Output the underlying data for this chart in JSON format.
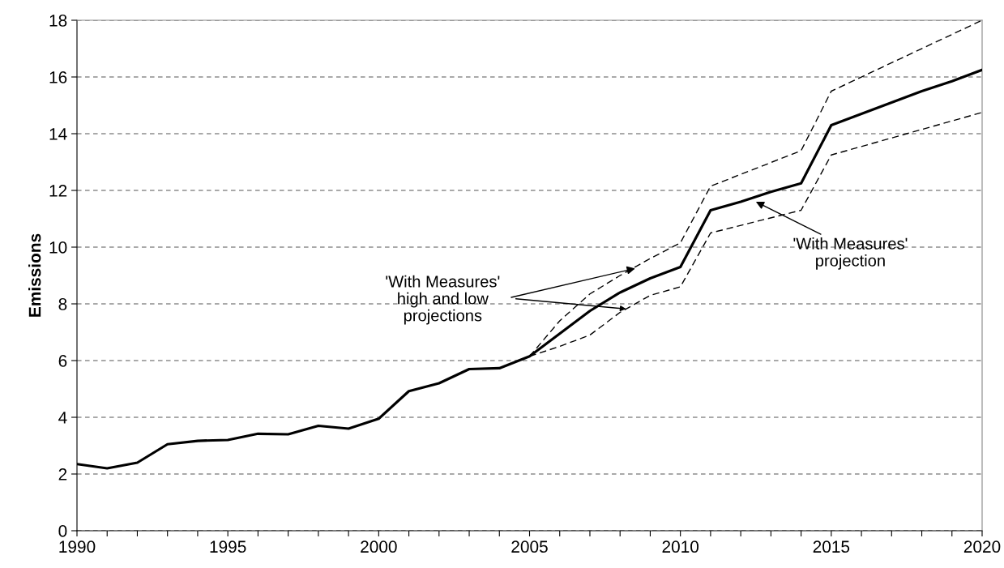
{
  "chart_data": {
    "type": "line",
    "ylabel": "Emissions",
    "xlim": [
      1990,
      2020
    ],
    "ylim": [
      0,
      18
    ],
    "xticks": [
      1990,
      {
        "value": 1991,
        "label": null
      },
      {
        "value": 1992,
        "label": null
      },
      {
        "value": 1993,
        "label": null
      },
      {
        "value": 1994,
        "label": null
      },
      1995,
      {
        "value": 1996,
        "label": null
      },
      {
        "value": 1997,
        "label": null
      },
      {
        "value": 1998,
        "label": null
      },
      {
        "value": 1999,
        "label": null
      },
      2000,
      {
        "value": 2001,
        "label": null
      },
      {
        "value": 2002,
        "label": null
      },
      {
        "value": 2003,
        "label": null
      },
      {
        "value": 2004,
        "label": null
      },
      2005,
      {
        "value": 2006,
        "label": null
      },
      {
        "value": 2007,
        "label": null
      },
      {
        "value": 2008,
        "label": null
      },
      {
        "value": 2009,
        "label": null
      },
      2010,
      {
        "value": 2011,
        "label": null
      },
      {
        "value": 2012,
        "label": null
      },
      {
        "value": 2013,
        "label": null
      },
      {
        "value": 2014,
        "label": null
      },
      2015,
      {
        "value": 2016,
        "label": null
      },
      {
        "value": 2017,
        "label": null
      },
      {
        "value": 2018,
        "label": null
      },
      {
        "value": 2019,
        "label": null
      },
      2020
    ],
    "yticks": [
      0,
      2,
      4,
      6,
      8,
      10,
      12,
      14,
      16,
      18
    ],
    "grid": "y",
    "marker": "none",
    "series": [
      {
        "color": "#000000",
        "line_style": "solid",
        "x": [
          1990,
          1991,
          1992,
          1993,
          1994,
          1995,
          1996,
          1997,
          1998,
          1999,
          2000,
          2001,
          2002,
          2003,
          2004,
          2005,
          2006,
          2007,
          2008,
          2009,
          2010,
          2011,
          2012,
          2013,
          2014,
          2015,
          2016,
          2017,
          2018,
          2019,
          2020
        ],
        "values": [
          2.35,
          2.2,
          2.4,
          3.05,
          3.17,
          3.2,
          3.42,
          3.4,
          3.7,
          3.6,
          3.95,
          4.92,
          5.2,
          5.7,
          5.73,
          6.15,
          6.95,
          7.75,
          8.4,
          8.9,
          9.3,
          11.3,
          11.6,
          11.95,
          12.25,
          14.3,
          14.7,
          15.1,
          15.5,
          15.85,
          16.25
        ]
      },
      {
        "color": "#000000",
        "line_style": "dashed",
        "x": [
          2005,
          2006,
          2007,
          2008,
          2009,
          2010,
          2011,
          2014,
          2015,
          2020
        ],
        "values": [
          6.15,
          7.4,
          8.35,
          9.0,
          9.6,
          10.15,
          12.15,
          13.4,
          15.5,
          18.0
        ]
      },
      {
        "color": "#000000",
        "line_style": "dashed",
        "x": [
          2005,
          2006,
          2007,
          2008,
          2009,
          2010,
          2011,
          2014,
          2015,
          2020
        ],
        "values": [
          6.15,
          6.5,
          6.9,
          7.7,
          8.3,
          8.6,
          10.5,
          11.3,
          13.25,
          14.75
        ]
      }
    ],
    "annotations": [
      {
        "text": "'With Measures'\nhigh and low\nprojections",
        "x": 2008.5,
        "y": 9.25
      },
      {
        "text": "'With Measures'\nprojection",
        "x": 2012.5,
        "y": 11.6
      }
    ]
  }
}
